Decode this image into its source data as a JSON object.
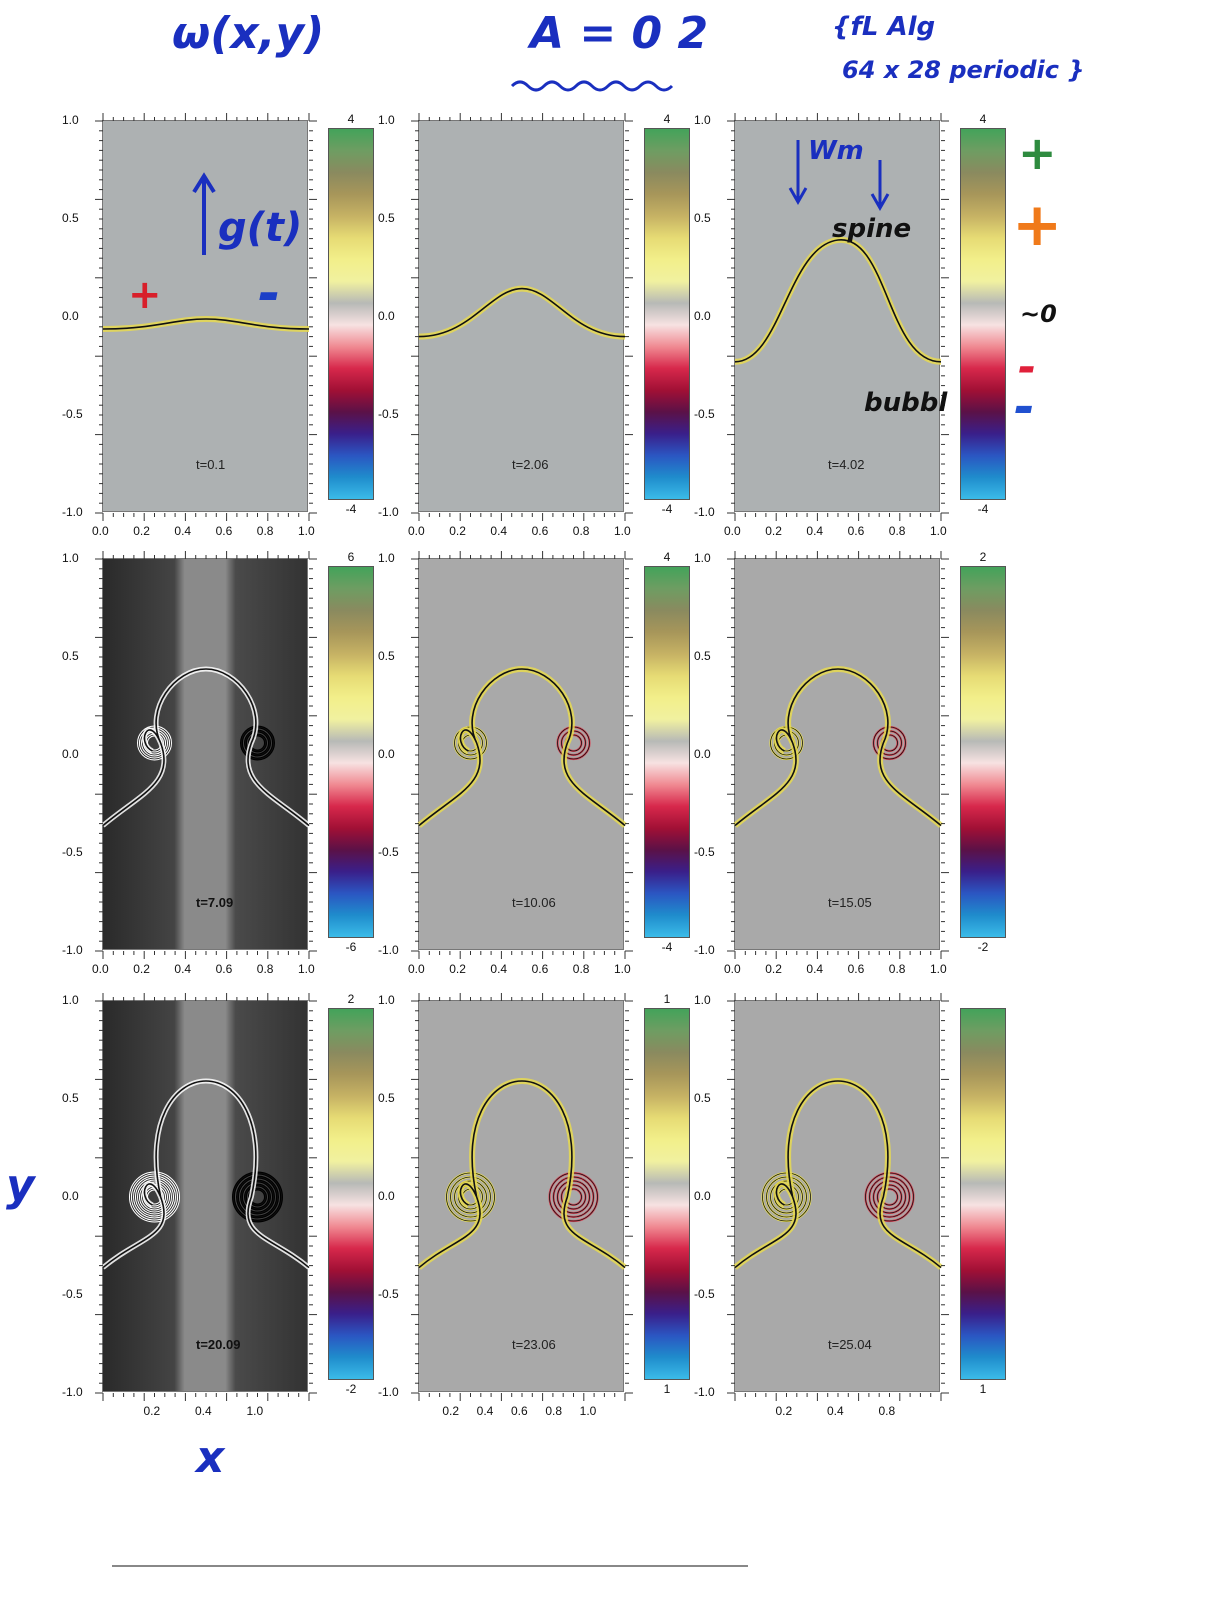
{
  "annotations": {
    "omega": "ω(x,y)",
    "atwood": "A = 0 2",
    "method_line1": "{fL Alg",
    "method_line2": " 64 x 28 periodic }",
    "g": "g(t)",
    "wm": "Wm",
    "spine": "spine",
    "bubble": "bubbl",
    "plus_sign": "+",
    "minus_sign": "-",
    "y_label": "y",
    "x_label": "x",
    "legend_zero": "~0"
  },
  "colors": {
    "hand_blue": "#1a2fbf",
    "plus_red": "#d81f2a",
    "minus_blue": "#1b3fc7",
    "legend_green": "#2e8b3f",
    "legend_orange": "#f07a1a",
    "legend_red": "#e0203a",
    "legend_blue": "#2050d0"
  },
  "panels": [
    {
      "t": "t=0.1",
      "cbar_top": "4",
      "cbar_bottom": "-4",
      "yticks": [
        "1.0",
        "0.5",
        "0.0",
        "-0.5",
        "-1.0"
      ],
      "xticks": [
        "0.0",
        "0.2",
        "0.4",
        "0.6",
        "0.8",
        "1.0"
      ]
    },
    {
      "t": "t=2.06",
      "cbar_top": "4",
      "cbar_bottom": "-4",
      "yticks": [
        "1.0",
        "0.5",
        "0.0",
        "-0.5",
        "-1.0"
      ],
      "xticks": [
        "0.0",
        "0.2",
        "0.4",
        "0.6",
        "0.8",
        "1.0"
      ]
    },
    {
      "t": "t=4.02",
      "cbar_top": "4",
      "cbar_bottom": "-4",
      "yticks": [
        "1.0",
        "0.5",
        "0.0",
        "-0.5",
        "-1.0"
      ],
      "xticks": [
        "0.0",
        "0.2",
        "0.4",
        "0.6",
        "0.8",
        "1.0"
      ]
    },
    {
      "t": "t=7.09",
      "cbar_top": "6",
      "cbar_bottom": "-6",
      "yticks": [
        "1.0",
        "0.5",
        "0.0",
        "-0.5",
        "-1.0"
      ],
      "xticks": [
        "0.0",
        "0.2",
        "0.4",
        "0.6",
        "0.8",
        "1.0"
      ]
    },
    {
      "t": "t=10.06",
      "cbar_top": "4",
      "cbar_bottom": "-4",
      "yticks": [
        "1.0",
        "0.5",
        "0.0",
        "-0.5",
        "-1.0"
      ],
      "xticks": [
        "0.0",
        "0.2",
        "0.4",
        "0.6",
        "0.8",
        "1.0"
      ]
    },
    {
      "t": "t=15.05",
      "cbar_top": "2",
      "cbar_bottom": "-2",
      "yticks": [
        "1.0",
        "0.5",
        "0.0",
        "-0.5",
        "-1.0"
      ],
      "xticks": [
        "0.0",
        "0.2",
        "0.4",
        "0.6",
        "0.8",
        "1.0"
      ]
    },
    {
      "t": "t=20.09",
      "cbar_top": "2",
      "cbar_bottom": "-2",
      "yticks": [
        "1.0",
        "0.5",
        "0.0",
        "-0.5",
        "-1.0"
      ],
      "xticks": [
        "0.2",
        "0.4",
        "1.0"
      ]
    },
    {
      "t": "t=23.06",
      "cbar_top": "1",
      "cbar_bottom": "1",
      "yticks": [
        "1.0",
        "0.5",
        "0.0",
        "-0.5",
        "-1.0"
      ],
      "xticks": [
        "0.2",
        "0.4",
        "0.6",
        "0.8",
        "1.0"
      ]
    },
    {
      "t": "t=25.04",
      "cbar_top": "",
      "cbar_bottom": "1",
      "yticks": [
        "1.0",
        "0.5",
        "0.0",
        "-0.5",
        "-1.0"
      ],
      "xticks": [
        "0.2",
        "0.4",
        "0.8"
      ]
    }
  ]
}
